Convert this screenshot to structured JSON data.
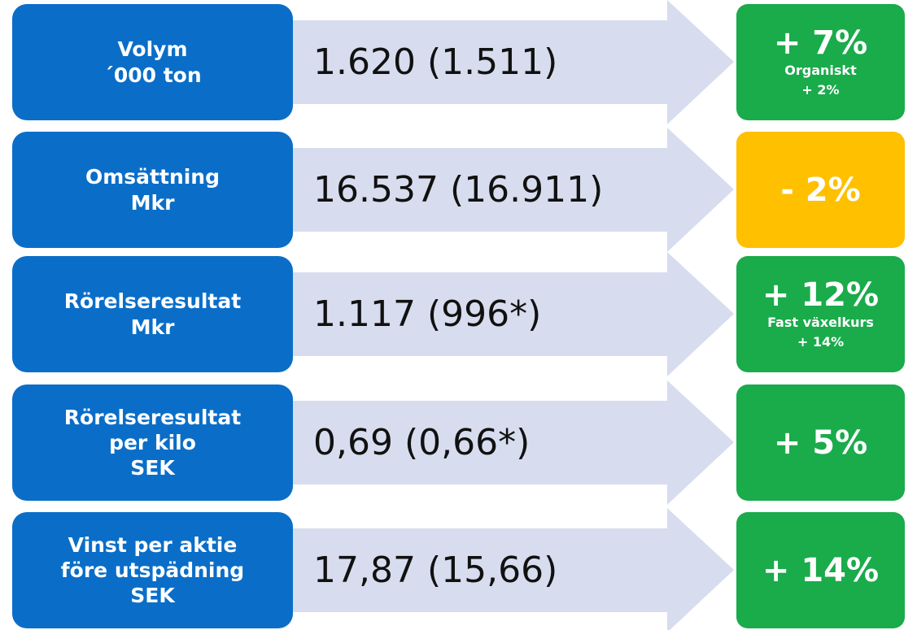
{
  "rows": [
    {
      "label": [
        "Volym",
        "´000 ton"
      ],
      "value": "1.620 (1.511)",
      "change": "+ 7%",
      "note": [
        "Organiskt",
        "+ 2%"
      ],
      "color": "#1aab4b"
    },
    {
      "label": [
        "Omsättning",
        "Mkr"
      ],
      "value": "16.537 (16.911)",
      "change": "- 2%",
      "note": [],
      "color": "#ffc000"
    },
    {
      "label": [
        "Rörelseresultat",
        "Mkr"
      ],
      "value": "1.117 (996*)",
      "change": "+ 12%",
      "note": [
        "Fast växelkurs",
        "+ 14%"
      ],
      "color": "#1aab4b"
    },
    {
      "label": [
        "Rörelseresultat",
        "per kilo",
        "SEK"
      ],
      "value": "0,69 (0,66*)",
      "change": "+ 5%",
      "note": [],
      "color": "#1aab4b"
    },
    {
      "label": [
        "Vinst per aktie",
        "före utspädning",
        "SEK"
      ],
      "value": "17,87 (15,66)",
      "change": "+ 14%",
      "note": [],
      "color": "#1aab4b"
    }
  ]
}
